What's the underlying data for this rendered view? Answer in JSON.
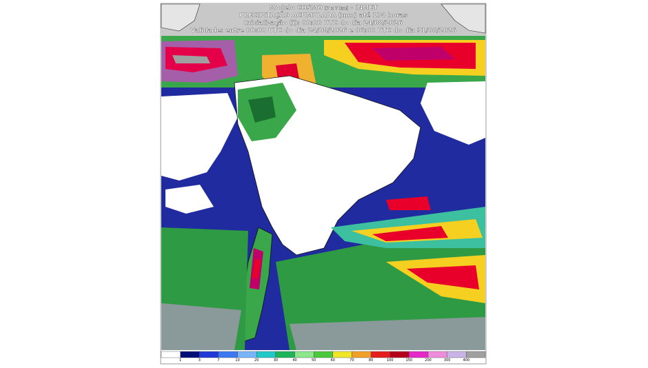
{
  "header": {
    "model": "Modelo COSMO",
    "resolution": "[7 x 7 km]",
    "agency": "- INMET",
    "title": "PRECIPITAÇÃO ACUMULADA (mm) até 174 horas",
    "initialization": "Inicialização (i): 00:00 UTC do dia 24/08/2026",
    "validity": "Validade: entre 00:00 UTC do dia 24/08/2026 e 06:00 UTC do dia 31/08/2026"
  },
  "legend": {
    "ticks": [
      1,
      3,
      7,
      10,
      20,
      30,
      40,
      50,
      60,
      70,
      80,
      100,
      150,
      200,
      300,
      400
    ],
    "colors": [
      "#ffffff",
      "#000e7a",
      "#1f3ad6",
      "#3c78f0",
      "#78b4f8",
      "#20c8c8",
      "#20b45a",
      "#8ce68c",
      "#4cc83c",
      "#f0e628",
      "#f0a028",
      "#e61e1e",
      "#b4001e",
      "#e628c8",
      "#f08cdc",
      "#c8b4e6",
      "#a0a0a0"
    ]
  }
}
